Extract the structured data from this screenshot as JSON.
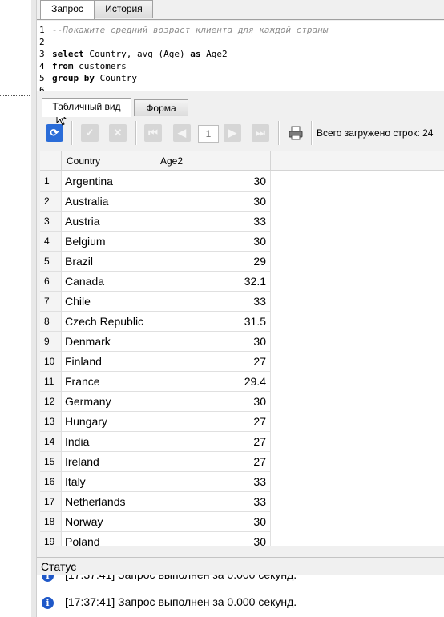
{
  "tabs": [
    {
      "label": "Запрос",
      "active": true
    },
    {
      "label": "История",
      "active": false
    }
  ],
  "editor": {
    "lines": [
      {
        "n": "1",
        "parts": [
          {
            "t": "--Покажите средний возраст клиента для каждой страны",
            "k": "cmt"
          }
        ]
      },
      {
        "n": "2",
        "parts": []
      },
      {
        "n": "3",
        "parts": [
          {
            "t": "select",
            "k": "kw"
          },
          {
            "t": " Country, avg (Age) ",
            "k": ""
          },
          {
            "t": "as",
            "k": "kw"
          },
          {
            "t": " Age2 ",
            "k": ""
          }
        ]
      },
      {
        "n": "4",
        "parts": [
          {
            "t": "from",
            "k": "kw"
          },
          {
            "t": " customers",
            "k": ""
          }
        ]
      },
      {
        "n": "5",
        "parts": [
          {
            "t": "group by",
            "k": "kw"
          },
          {
            "t": " Country",
            "k": ""
          }
        ]
      },
      {
        "n": "6",
        "parts": []
      }
    ]
  },
  "result_tabs": [
    {
      "label": "Табличный вид",
      "active": true
    },
    {
      "label": "Форма",
      "active": false
    }
  ],
  "toolbar": {
    "page": "1",
    "rows_loaded_label": "Всего загружено строк: 24",
    "icons": [
      "refresh-icon",
      "confirm-icon",
      "cancel-icon",
      "first-page-icon",
      "prev-page-icon",
      "next-page-icon",
      "last-page-icon",
      "print-icon"
    ]
  },
  "grid": {
    "columns": [
      "Country",
      "Age2"
    ],
    "rows": [
      {
        "n": "1",
        "country": "Argentina",
        "age": "30"
      },
      {
        "n": "2",
        "country": "Australia",
        "age": "30"
      },
      {
        "n": "3",
        "country": "Austria",
        "age": "33"
      },
      {
        "n": "4",
        "country": "Belgium",
        "age": "30"
      },
      {
        "n": "5",
        "country": "Brazil",
        "age": "29"
      },
      {
        "n": "6",
        "country": "Canada",
        "age": "32.1"
      },
      {
        "n": "7",
        "country": "Chile",
        "age": "33"
      },
      {
        "n": "8",
        "country": "Czech Republic",
        "age": "31.5"
      },
      {
        "n": "9",
        "country": "Denmark",
        "age": "30"
      },
      {
        "n": "10",
        "country": "Finland",
        "age": "27"
      },
      {
        "n": "11",
        "country": "France",
        "age": "29.4"
      },
      {
        "n": "12",
        "country": "Germany",
        "age": "30"
      },
      {
        "n": "13",
        "country": "Hungary",
        "age": "27"
      },
      {
        "n": "14",
        "country": "India",
        "age": "27"
      },
      {
        "n": "15",
        "country": "Ireland",
        "age": "27"
      },
      {
        "n": "16",
        "country": "Italy",
        "age": "33"
      },
      {
        "n": "17",
        "country": "Netherlands",
        "age": "33"
      },
      {
        "n": "18",
        "country": "Norway",
        "age": "30"
      },
      {
        "n": "19",
        "country": "Poland",
        "age": "30"
      }
    ]
  },
  "status": {
    "title": "Статус",
    "messages": [
      "[17:37:41]  Запрос выполнен за 0.000 секунд.",
      "[17:37:41]  Запрос выполнен за 0.000 секунд."
    ]
  },
  "colors": {
    "accent": "#1f58c8",
    "comment": "#8c8c8c"
  }
}
